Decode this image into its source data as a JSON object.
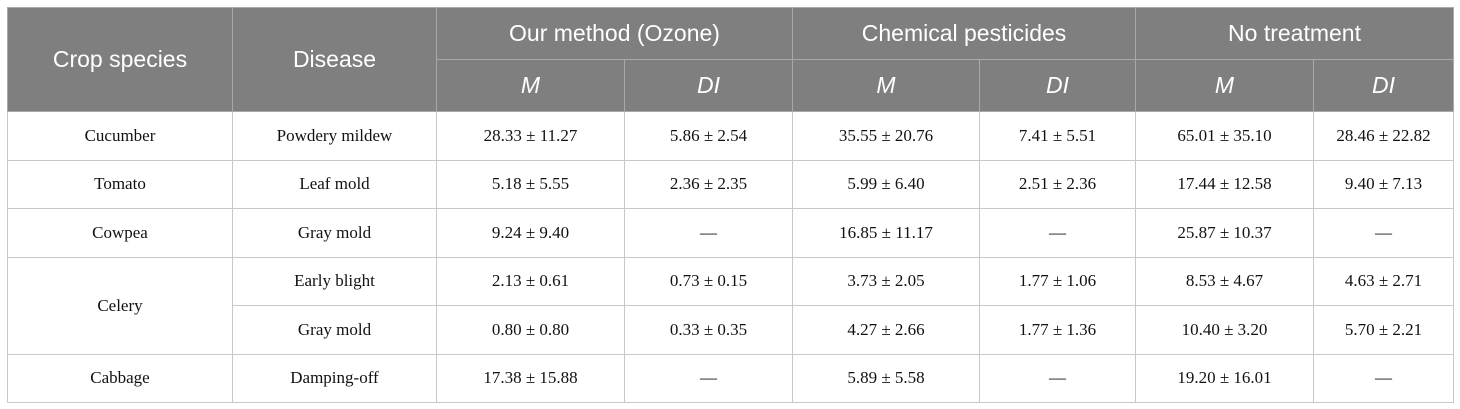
{
  "header": {
    "crop": "Crop species",
    "disease": "Disease",
    "groups": [
      "Our method (Ozone)",
      "Chemical pesticides",
      "No treatment"
    ],
    "subheaders": [
      "M",
      "DI",
      "M",
      "DI",
      "M",
      "DI"
    ]
  },
  "table": {
    "groups": [
      {
        "crop": "Cucumber",
        "rows": [
          {
            "disease": "Powdery mildew",
            "cells": [
              "28.33 ± 11.27",
              "5.86 ± 2.54",
              "35.55 ± 20.76",
              "7.41 ± 5.51",
              "65.01 ± 35.10",
              "28.46 ± 22.82"
            ]
          }
        ]
      },
      {
        "crop": "Tomato",
        "rows": [
          {
            "disease": "Leaf mold",
            "cells": [
              "5.18 ± 5.55",
              "2.36 ± 2.35",
              "5.99 ± 6.40",
              "2.51 ± 2.36",
              "17.44 ± 12.58",
              "9.40 ± 7.13"
            ]
          }
        ]
      },
      {
        "crop": "Cowpea",
        "rows": [
          {
            "disease": "Gray mold",
            "cells": [
              "9.24 ± 9.40",
              "—",
              "16.85 ± 11.17",
              "—",
              "25.87 ± 10.37",
              "—"
            ]
          }
        ]
      },
      {
        "crop": "Celery",
        "rows": [
          {
            "disease": "Early blight",
            "cells": [
              "2.13 ± 0.61",
              "0.73 ± 0.15",
              "3.73 ± 2.05",
              "1.77 ± 1.06",
              "8.53 ± 4.67",
              "4.63 ± 2.71"
            ]
          },
          {
            "disease": "Gray mold",
            "cells": [
              "0.80 ± 0.80",
              "0.33 ± 0.35",
              "4.27 ± 2.66",
              "1.77 ± 1.36",
              "10.40 ± 3.20",
              "5.70 ± 2.21"
            ]
          }
        ]
      },
      {
        "crop": "Cabbage",
        "rows": [
          {
            "disease": "Damping-off",
            "cells": [
              "17.38 ± 15.88",
              "—",
              "5.89 ± 5.58",
              "—",
              "19.20 ± 16.01",
              "—"
            ]
          }
        ]
      }
    ]
  }
}
